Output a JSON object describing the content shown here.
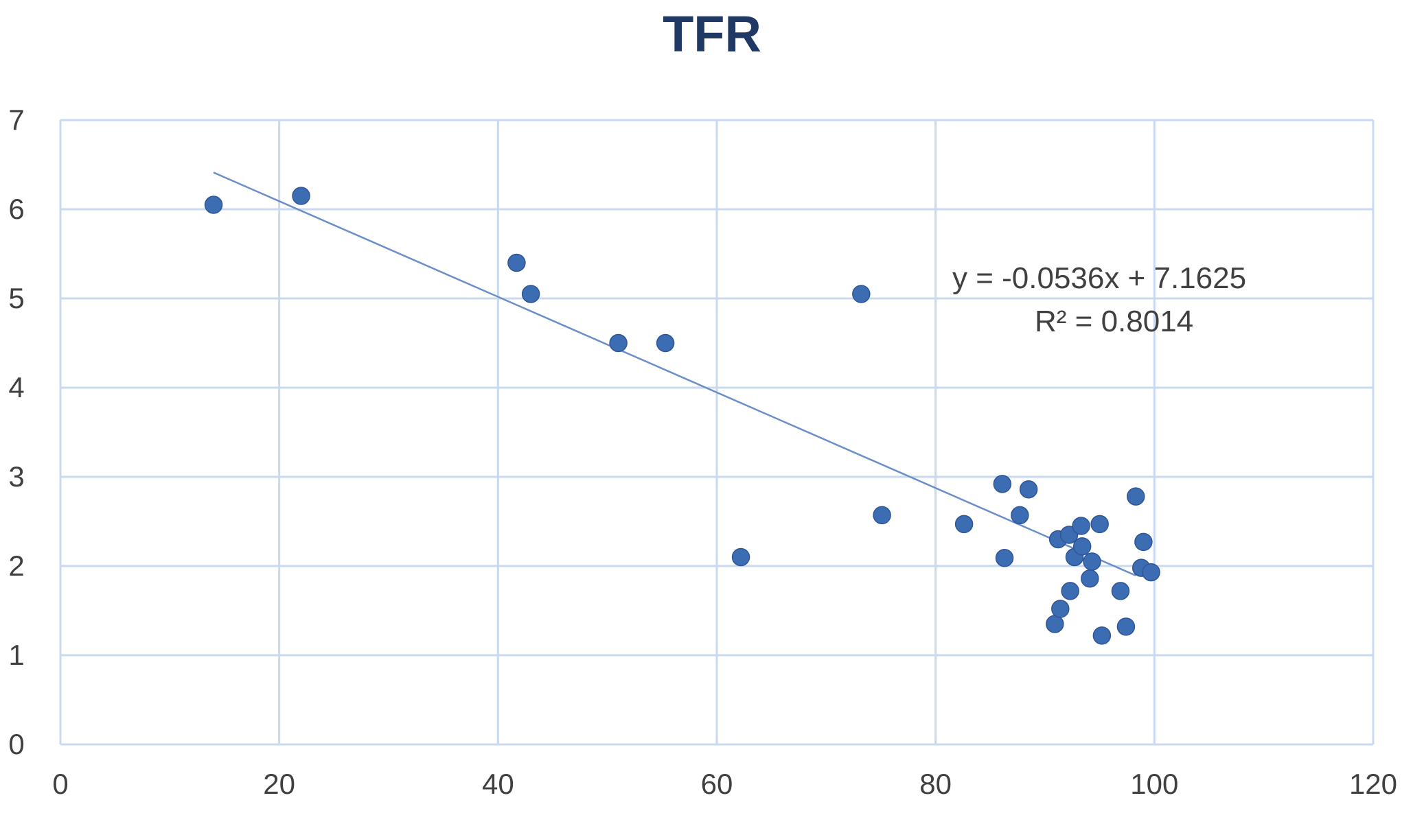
{
  "chart_data": {
    "type": "scatter",
    "title": "TFR",
    "xlabel": "",
    "ylabel": "",
    "xlim": [
      0,
      120
    ],
    "ylim": [
      0,
      7
    ],
    "x_ticks": [
      "0",
      "20",
      "40",
      "60",
      "80",
      "100",
      "120"
    ],
    "y_ticks": [
      "0",
      "1",
      "2",
      "3",
      "4",
      "5",
      "6",
      "7"
    ],
    "grid": true,
    "legend": "none",
    "colors": {
      "title": "#1f3864",
      "marker": "#3c6db3",
      "marker_edge": "#2f5597",
      "trendline": "#6a8fc8",
      "grid": "#c9d9ef",
      "axis_text": "#404040",
      "equation_text": "#404040"
    },
    "series": [
      {
        "points": [
          {
            "x": 14,
            "y": 6.05
          },
          {
            "x": 22,
            "y": 6.15
          },
          {
            "x": 41.7,
            "y": 5.4
          },
          {
            "x": 43,
            "y": 5.05
          },
          {
            "x": 51,
            "y": 4.5
          },
          {
            "x": 55.3,
            "y": 4.5
          },
          {
            "x": 62.2,
            "y": 2.1
          },
          {
            "x": 73.2,
            "y": 5.05
          },
          {
            "x": 75.1,
            "y": 2.57
          },
          {
            "x": 82.6,
            "y": 2.47
          },
          {
            "x": 86.1,
            "y": 2.92
          },
          {
            "x": 86.3,
            "y": 2.09
          },
          {
            "x": 87.7,
            "y": 2.57
          },
          {
            "x": 88.5,
            "y": 2.86
          },
          {
            "x": 90.9,
            "y": 1.35
          },
          {
            "x": 91.2,
            "y": 2.3
          },
          {
            "x": 91.4,
            "y": 1.52
          },
          {
            "x": 92.2,
            "y": 2.35
          },
          {
            "x": 92.3,
            "y": 1.72
          },
          {
            "x": 92.7,
            "y": 2.1
          },
          {
            "x": 93.3,
            "y": 2.45
          },
          {
            "x": 93.4,
            "y": 2.22
          },
          {
            "x": 94.1,
            "y": 1.86
          },
          {
            "x": 94.3,
            "y": 2.05
          },
          {
            "x": 95,
            "y": 2.47
          },
          {
            "x": 95.2,
            "y": 1.22
          },
          {
            "x": 96.9,
            "y": 1.72
          },
          {
            "x": 97.4,
            "y": 1.32
          },
          {
            "x": 98.3,
            "y": 2.78
          },
          {
            "x": 98.8,
            "y": 1.98
          },
          {
            "x": 99,
            "y": 2.27
          },
          {
            "x": 99.7,
            "y": 1.93
          }
        ]
      }
    ],
    "trendline": {
      "type": "linear",
      "slope": -0.0536,
      "intercept": 7.1625,
      "x_range": [
        14,
        98.3
      ],
      "equation": "y = -0.0536x + 7.1625",
      "r_squared": "R² = 0.8014"
    }
  }
}
